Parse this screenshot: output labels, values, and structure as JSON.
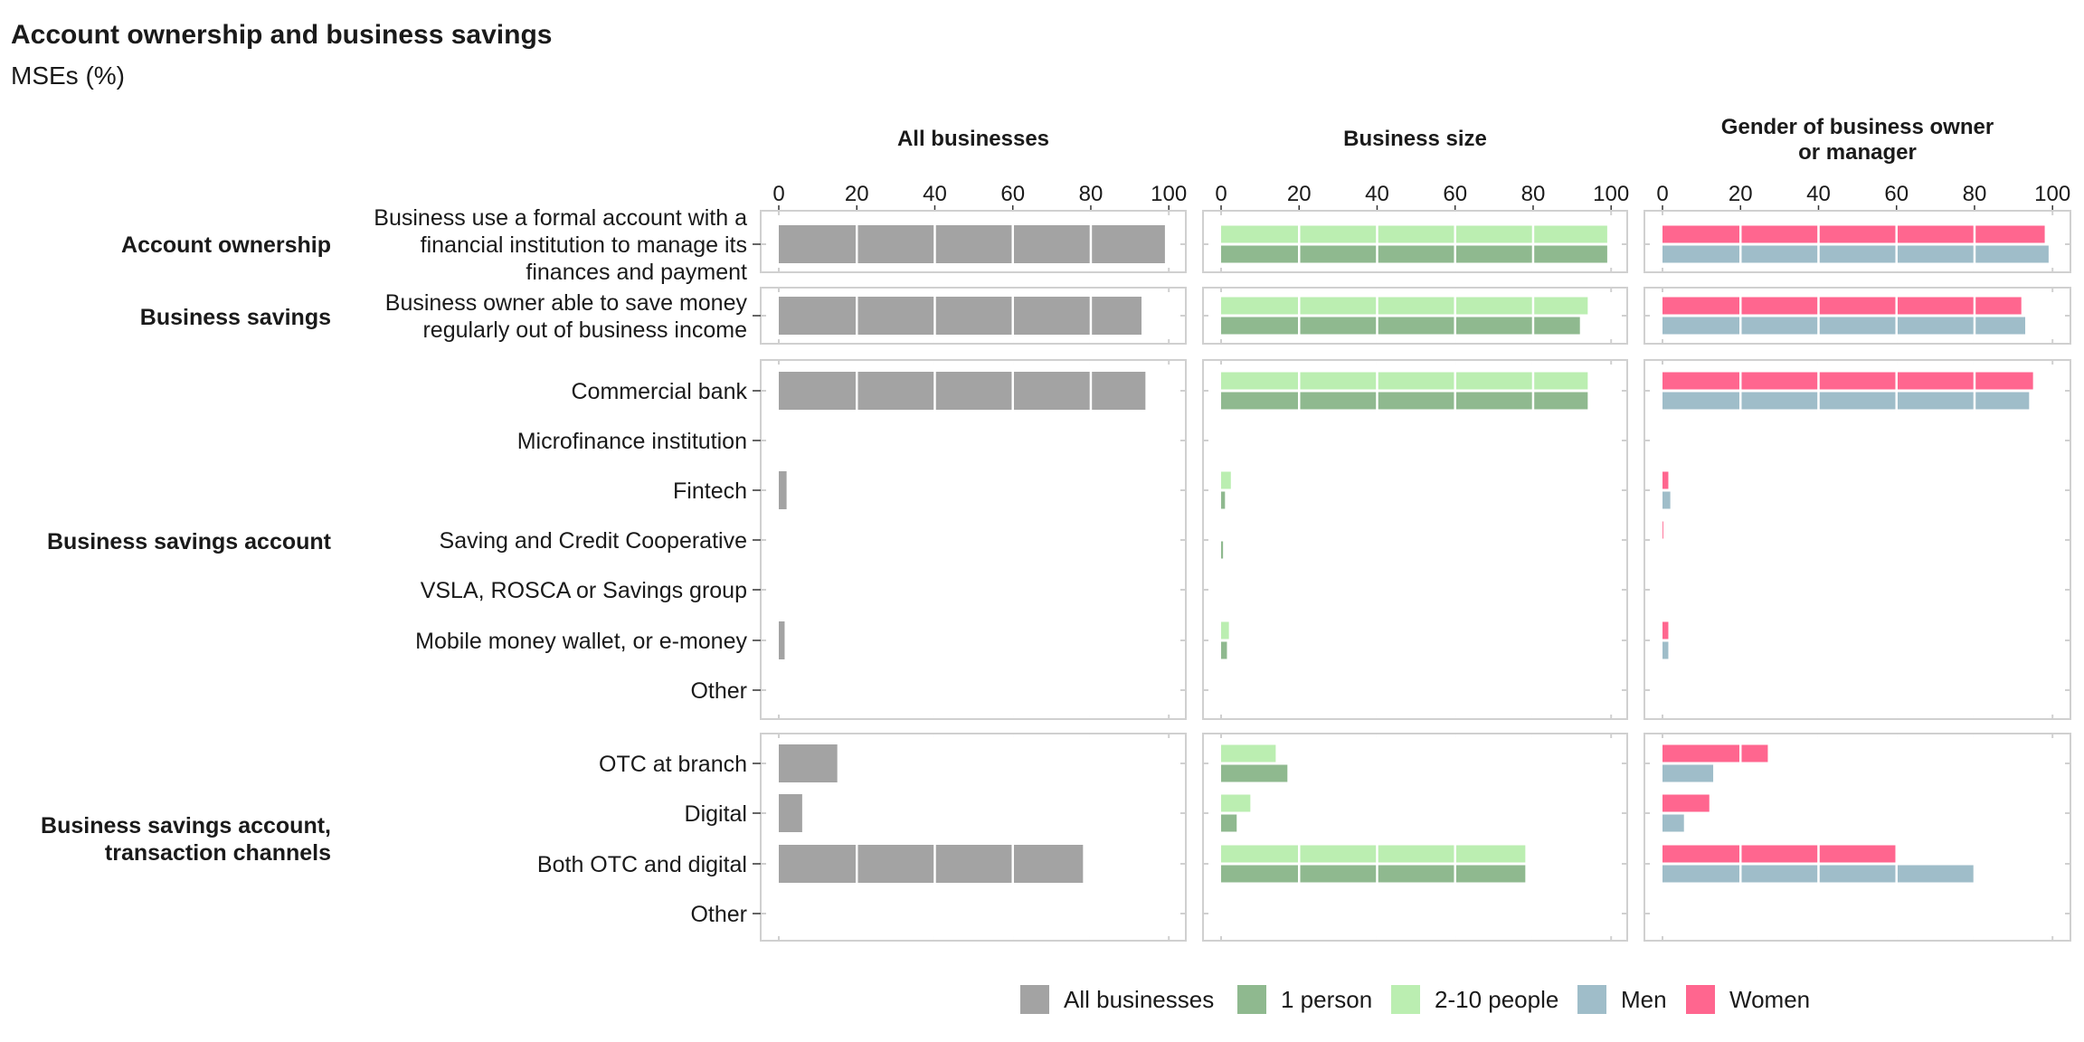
{
  "chart_data": {
    "type": "bar",
    "title": "Account ownership and business savings",
    "subtitle": "MSEs (%)",
    "orientation": "horizontal",
    "xlim": [
      0,
      100
    ],
    "x_ticks": [
      "0",
      "20",
      "40",
      "60",
      "80",
      "100"
    ],
    "grid": true,
    "legend_position": "bottom",
    "panels": [
      {
        "id": "all",
        "title": "All businesses",
        "series": [
          "all"
        ]
      },
      {
        "id": "size",
        "title": "Business size",
        "series": [
          "p1",
          "p210"
        ]
      },
      {
        "id": "gender",
        "title": "Gender of business owner or manager",
        "series": [
          "men",
          "women"
        ]
      }
    ],
    "legend": [
      {
        "key": "all",
        "label": "All businesses",
        "color": "#a3a3a3"
      },
      {
        "key": "p1",
        "label": "1 person",
        "color": "#8fb98f"
      },
      {
        "key": "p210",
        "label": "2-10 people",
        "color": "#bbeeb1"
      },
      {
        "key": "men",
        "label": "Men",
        "color": "#9fbdc9"
      },
      {
        "key": "women",
        "label": "Women",
        "color": "#ff668f"
      }
    ],
    "groups": [
      {
        "label": "Account ownership",
        "rows": [
          {
            "label": "Business use a formal account with a financial institution to manage its finances and payment",
            "values": {
              "all": 99,
              "p210": 99,
              "p1": 99,
              "women": 98,
              "men": 99
            }
          }
        ]
      },
      {
        "label": "Business savings",
        "rows": [
          {
            "label": "Business owner able to save money regularly out of business income",
            "values": {
              "all": 93,
              "p210": 94,
              "p1": 92,
              "women": 92,
              "men": 93
            }
          }
        ]
      },
      {
        "label": "Business savings account",
        "rows": [
          {
            "label": "Commercial bank",
            "values": {
              "all": 94,
              "p210": 94,
              "p1": 94,
              "women": 95,
              "men": 94
            }
          },
          {
            "label": "Microfinance institution",
            "values": {
              "all": 0,
              "p210": 0,
              "p1": 0,
              "women": 0,
              "men": 0
            }
          },
          {
            "label": "Fintech",
            "values": {
              "all": 2,
              "p210": 2.5,
              "p1": 1,
              "women": 1.5,
              "men": 2
            }
          },
          {
            "label": "Saving and Credit Cooperative",
            "values": {
              "all": 0,
              "p210": 0,
              "p1": 0.5,
              "women": 0.2,
              "men": 0
            }
          },
          {
            "label": "VSLA, ROSCA or Savings group",
            "values": {
              "all": 0,
              "p210": 0,
              "p1": 0,
              "women": 0,
              "men": 0
            }
          },
          {
            "label": "Mobile money wallet, or e-money",
            "values": {
              "all": 1.5,
              "p210": 2,
              "p1": 1.5,
              "women": 1.5,
              "men": 1.5
            }
          },
          {
            "label": "Other",
            "values": {
              "all": 0,
              "p210": 0,
              "p1": 0,
              "women": 0,
              "men": 0
            }
          }
        ]
      },
      {
        "label": "Business savings account, transaction channels",
        "rows": [
          {
            "label": "OTC at branch",
            "values": {
              "all": 15,
              "p210": 14,
              "p1": 17,
              "women": 27,
              "men": 13
            }
          },
          {
            "label": "Digital",
            "values": {
              "all": 6,
              "p210": 7.5,
              "p1": 4,
              "women": 12,
              "men": 5.5
            }
          },
          {
            "label": "Both OTC and digital",
            "values": {
              "all": 78,
              "p210": 78,
              "p1": 78,
              "women": 60,
              "men": 80
            }
          },
          {
            "label": "Other",
            "values": {
              "all": 0,
              "p210": 0,
              "p1": 0,
              "women": 0,
              "men": 0
            }
          }
        ]
      }
    ]
  }
}
